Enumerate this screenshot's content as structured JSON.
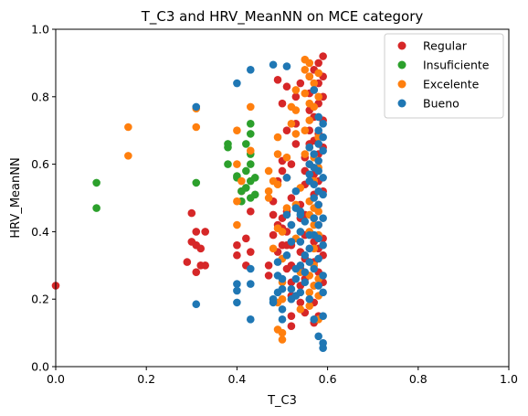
{
  "chart_data": {
    "type": "scatter",
    "title": "T_C3 and HRV_MeanNN on MCE category",
    "xlabel": "T_C3",
    "ylabel": "HRV_MeanNN",
    "xlim": [
      0,
      1
    ],
    "ylim": [
      0,
      1
    ],
    "xticks": [
      "0.0",
      "0.2",
      "0.4",
      "0.6",
      "0.8",
      "1.0"
    ],
    "yticks": [
      "0.0",
      "0.2",
      "0.4",
      "0.6",
      "0.8",
      "1.0"
    ],
    "grid": false,
    "legend_position": "top-right",
    "series": [
      {
        "name": "Regular",
        "color": "#d62728",
        "points": [
          [
            0.0,
            0.24
          ],
          [
            0.29,
            0.31
          ],
          [
            0.3,
            0.37
          ],
          [
            0.3,
            0.455
          ],
          [
            0.31,
            0.36
          ],
          [
            0.31,
            0.28
          ],
          [
            0.32,
            0.35
          ],
          [
            0.32,
            0.3
          ],
          [
            0.33,
            0.4
          ],
          [
            0.33,
            0.3
          ],
          [
            0.31,
            0.4
          ],
          [
            0.4,
            0.33
          ],
          [
            0.4,
            0.36
          ],
          [
            0.41,
            0.52
          ],
          [
            0.42,
            0.3
          ],
          [
            0.42,
            0.38
          ],
          [
            0.43,
            0.34
          ],
          [
            0.43,
            0.46
          ],
          [
            0.47,
            0.27
          ],
          [
            0.47,
            0.3
          ],
          [
            0.48,
            0.39
          ],
          [
            0.48,
            0.45
          ],
          [
            0.48,
            0.49
          ],
          [
            0.49,
            0.34
          ],
          [
            0.49,
            0.42
          ],
          [
            0.49,
            0.55
          ],
          [
            0.49,
            0.85
          ],
          [
            0.5,
            0.36
          ],
          [
            0.5,
            0.41
          ],
          [
            0.5,
            0.44
          ],
          [
            0.5,
            0.58
          ],
          [
            0.5,
            0.61
          ],
          [
            0.5,
            0.78
          ],
          [
            0.51,
            0.83
          ],
          [
            0.51,
            0.7
          ],
          [
            0.51,
            0.46
          ],
          [
            0.51,
            0.4
          ],
          [
            0.51,
            0.36
          ],
          [
            0.51,
            0.29
          ],
          [
            0.52,
            0.12
          ],
          [
            0.52,
            0.15
          ],
          [
            0.52,
            0.21
          ],
          [
            0.52,
            0.25
          ],
          [
            0.52,
            0.3
          ],
          [
            0.52,
            0.36
          ],
          [
            0.52,
            0.42
          ],
          [
            0.52,
            0.5
          ],
          [
            0.52,
            0.6
          ],
          [
            0.53,
            0.66
          ],
          [
            0.53,
            0.72
          ],
          [
            0.53,
            0.8
          ],
          [
            0.54,
            0.84
          ],
          [
            0.54,
            0.48
          ],
          [
            0.54,
            0.44
          ],
          [
            0.54,
            0.34
          ],
          [
            0.54,
            0.29
          ],
          [
            0.54,
            0.24
          ],
          [
            0.54,
            0.19
          ],
          [
            0.55,
            0.16
          ],
          [
            0.55,
            0.26
          ],
          [
            0.55,
            0.32
          ],
          [
            0.55,
            0.39
          ],
          [
            0.55,
            0.45
          ],
          [
            0.55,
            0.54
          ],
          [
            0.55,
            0.58
          ],
          [
            0.55,
            0.62
          ],
          [
            0.56,
            0.66
          ],
          [
            0.56,
            0.7
          ],
          [
            0.56,
            0.76
          ],
          [
            0.56,
            0.81
          ],
          [
            0.56,
            0.86
          ],
          [
            0.57,
            0.88
          ],
          [
            0.57,
            0.82
          ],
          [
            0.57,
            0.74
          ],
          [
            0.57,
            0.67
          ],
          [
            0.57,
            0.57
          ],
          [
            0.57,
            0.51
          ],
          [
            0.57,
            0.44
          ],
          [
            0.57,
            0.37
          ],
          [
            0.57,
            0.31
          ],
          [
            0.57,
            0.24
          ],
          [
            0.57,
            0.19
          ],
          [
            0.57,
            0.13
          ],
          [
            0.58,
            0.15
          ],
          [
            0.58,
            0.28
          ],
          [
            0.58,
            0.35
          ],
          [
            0.58,
            0.42
          ],
          [
            0.58,
            0.48
          ],
          [
            0.58,
            0.55
          ],
          [
            0.58,
            0.63
          ],
          [
            0.58,
            0.69
          ],
          [
            0.58,
            0.78
          ],
          [
            0.58,
            0.84
          ],
          [
            0.58,
            0.9
          ],
          [
            0.59,
            0.92
          ],
          [
            0.59,
            0.86
          ],
          [
            0.59,
            0.8
          ],
          [
            0.59,
            0.73
          ],
          [
            0.59,
            0.65
          ],
          [
            0.59,
            0.52
          ],
          [
            0.59,
            0.38
          ],
          [
            0.59,
            0.25
          ],
          [
            0.59,
            0.33
          ]
        ]
      },
      {
        "name": "Insuficiente",
        "color": "#2ca02c",
        "points": [
          [
            0.09,
            0.47
          ],
          [
            0.09,
            0.545
          ],
          [
            0.31,
            0.545
          ],
          [
            0.38,
            0.6
          ],
          [
            0.38,
            0.65
          ],
          [
            0.38,
            0.66
          ],
          [
            0.4,
            0.56
          ],
          [
            0.4,
            0.565
          ],
          [
            0.41,
            0.49
          ],
          [
            0.41,
            0.52
          ],
          [
            0.42,
            0.53
          ],
          [
            0.42,
            0.58
          ],
          [
            0.42,
            0.66
          ],
          [
            0.43,
            0.55
          ],
          [
            0.43,
            0.6
          ],
          [
            0.43,
            0.63
          ],
          [
            0.43,
            0.69
          ],
          [
            0.43,
            0.72
          ],
          [
            0.44,
            0.56
          ],
          [
            0.44,
            0.51
          ],
          [
            0.43,
            0.5
          ]
        ]
      },
      {
        "name": "Excelente",
        "color": "#ff7f0e",
        "points": [
          [
            0.16,
            0.71
          ],
          [
            0.16,
            0.625
          ],
          [
            0.31,
            0.71
          ],
          [
            0.31,
            0.765
          ],
          [
            0.4,
            0.7
          ],
          [
            0.4,
            0.6
          ],
          [
            0.4,
            0.49
          ],
          [
            0.4,
            0.42
          ],
          [
            0.41,
            0.55
          ],
          [
            0.43,
            0.77
          ],
          [
            0.43,
            0.64
          ],
          [
            0.47,
            0.58
          ],
          [
            0.47,
            0.52
          ],
          [
            0.47,
            0.5
          ],
          [
            0.48,
            0.35
          ],
          [
            0.48,
            0.55
          ],
          [
            0.49,
            0.63
          ],
          [
            0.49,
            0.68
          ],
          [
            0.49,
            0.54
          ],
          [
            0.49,
            0.41
          ],
          [
            0.49,
            0.19
          ],
          [
            0.49,
            0.11
          ],
          [
            0.5,
            0.08
          ],
          [
            0.5,
            0.1
          ],
          [
            0.5,
            0.2
          ],
          [
            0.5,
            0.25
          ],
          [
            0.5,
            0.32
          ],
          [
            0.5,
            0.4
          ],
          [
            0.51,
            0.47
          ],
          [
            0.51,
            0.56
          ],
          [
            0.51,
            0.62
          ],
          [
            0.52,
            0.72
          ],
          [
            0.52,
            0.77
          ],
          [
            0.53,
            0.69
          ],
          [
            0.53,
            0.76
          ],
          [
            0.53,
            0.82
          ],
          [
            0.53,
            0.48
          ],
          [
            0.53,
            0.38
          ],
          [
            0.54,
            0.17
          ],
          [
            0.54,
            0.28
          ],
          [
            0.54,
            0.53
          ],
          [
            0.55,
            0.63
          ],
          [
            0.55,
            0.7
          ],
          [
            0.55,
            0.81
          ],
          [
            0.55,
            0.88
          ],
          [
            0.55,
            0.91
          ],
          [
            0.56,
            0.9
          ],
          [
            0.56,
            0.86
          ],
          [
            0.56,
            0.78
          ],
          [
            0.56,
            0.73
          ],
          [
            0.56,
            0.65
          ],
          [
            0.56,
            0.6
          ],
          [
            0.56,
            0.49
          ],
          [
            0.56,
            0.45
          ],
          [
            0.56,
            0.4
          ],
          [
            0.56,
            0.27
          ],
          [
            0.56,
            0.22
          ],
          [
            0.56,
            0.18
          ],
          [
            0.57,
            0.24
          ],
          [
            0.57,
            0.3
          ],
          [
            0.57,
            0.35
          ],
          [
            0.57,
            0.42
          ],
          [
            0.57,
            0.47
          ],
          [
            0.57,
            0.55
          ],
          [
            0.57,
            0.62
          ],
          [
            0.57,
            0.77
          ],
          [
            0.57,
            0.84
          ],
          [
            0.58,
            0.87
          ],
          [
            0.58,
            0.8
          ],
          [
            0.58,
            0.68
          ],
          [
            0.58,
            0.59
          ],
          [
            0.58,
            0.46
          ],
          [
            0.58,
            0.39
          ],
          [
            0.58,
            0.26
          ],
          [
            0.58,
            0.21
          ],
          [
            0.58,
            0.14
          ]
        ]
      },
      {
        "name": "Bueno",
        "color": "#1f77b4",
        "points": [
          [
            0.31,
            0.77
          ],
          [
            0.31,
            0.185
          ],
          [
            0.4,
            0.84
          ],
          [
            0.4,
            0.245
          ],
          [
            0.4,
            0.225
          ],
          [
            0.4,
            0.19
          ],
          [
            0.43,
            0.88
          ],
          [
            0.43,
            0.29
          ],
          [
            0.43,
            0.245
          ],
          [
            0.43,
            0.14
          ],
          [
            0.48,
            0.895
          ],
          [
            0.48,
            0.19
          ],
          [
            0.48,
            0.2
          ],
          [
            0.49,
            0.22
          ],
          [
            0.49,
            0.27
          ],
          [
            0.49,
            0.31
          ],
          [
            0.5,
            0.14
          ],
          [
            0.5,
            0.17
          ],
          [
            0.5,
            0.23
          ],
          [
            0.5,
            0.26
          ],
          [
            0.51,
            0.33
          ],
          [
            0.51,
            0.45
          ],
          [
            0.51,
            0.56
          ],
          [
            0.51,
            0.89
          ],
          [
            0.52,
            0.2
          ],
          [
            0.52,
            0.23
          ],
          [
            0.52,
            0.37
          ],
          [
            0.52,
            0.42
          ],
          [
            0.53,
            0.21
          ],
          [
            0.53,
            0.26
          ],
          [
            0.53,
            0.29
          ],
          [
            0.53,
            0.47
          ],
          [
            0.53,
            0.52
          ],
          [
            0.54,
            0.22
          ],
          [
            0.54,
            0.3
          ],
          [
            0.54,
            0.37
          ],
          [
            0.54,
            0.4
          ],
          [
            0.54,
            0.46
          ],
          [
            0.54,
            0.45
          ],
          [
            0.55,
            0.25
          ],
          [
            0.55,
            0.28
          ],
          [
            0.55,
            0.33
          ],
          [
            0.55,
            0.43
          ],
          [
            0.56,
            0.2
          ],
          [
            0.56,
            0.31
          ],
          [
            0.56,
            0.35
          ],
          [
            0.56,
            0.39
          ],
          [
            0.56,
            0.55
          ],
          [
            0.56,
            0.57
          ],
          [
            0.56,
            0.6
          ],
          [
            0.56,
            0.65
          ],
          [
            0.57,
            0.14
          ],
          [
            0.57,
            0.29
          ],
          [
            0.57,
            0.39
          ],
          [
            0.57,
            0.44
          ],
          [
            0.57,
            0.5
          ],
          [
            0.57,
            0.54
          ],
          [
            0.57,
            0.59
          ],
          [
            0.57,
            0.63
          ],
          [
            0.57,
            0.82
          ],
          [
            0.58,
            0.24
          ],
          [
            0.58,
            0.32
          ],
          [
            0.58,
            0.38
          ],
          [
            0.58,
            0.42
          ],
          [
            0.58,
            0.48
          ],
          [
            0.58,
            0.52
          ],
          [
            0.58,
            0.58
          ],
          [
            0.58,
            0.61
          ],
          [
            0.58,
            0.66
          ],
          [
            0.58,
            0.7
          ],
          [
            0.58,
            0.74
          ],
          [
            0.58,
            0.09
          ],
          [
            0.59,
            0.055
          ],
          [
            0.59,
            0.07
          ],
          [
            0.59,
            0.15
          ],
          [
            0.59,
            0.22
          ],
          [
            0.59,
            0.27
          ],
          [
            0.59,
            0.36
          ],
          [
            0.59,
            0.44
          ],
          [
            0.59,
            0.51
          ],
          [
            0.59,
            0.56
          ],
          [
            0.59,
            0.64
          ],
          [
            0.59,
            0.68
          ],
          [
            0.59,
            0.72
          ]
        ]
      }
    ]
  }
}
